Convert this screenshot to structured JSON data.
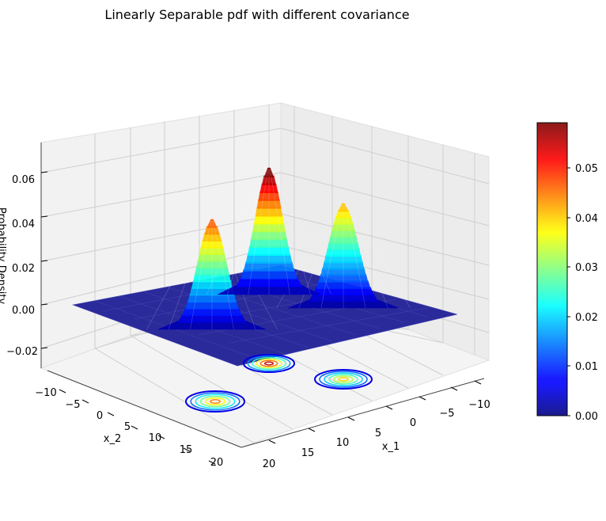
{
  "chart_data": {
    "type": "surface3d",
    "title": "Linearly Separable pdf with different covariance",
    "xlabel": "x_1",
    "ylabel": "x_2",
    "zlabel": "Probability Density",
    "x_ticks": [
      "−10",
      "−5",
      "0",
      "5",
      "10",
      "15",
      "20"
    ],
    "y_ticks": [
      "−10",
      "−5",
      "0",
      "5",
      "10",
      "15",
      "20"
    ],
    "z_ticks": [
      "0.06",
      "0.04",
      "0.02",
      "0.00",
      "−0.02"
    ],
    "colorbar_ticks": [
      "0.05",
      "0.04",
      "0.03",
      "0.02",
      "0.01",
      "0.00"
    ],
    "colormap": "jet",
    "surface_color_range": [
      0,
      0.059
    ],
    "peaks": [
      {
        "x_1": 10,
        "x_2": 0,
        "density": 0.059
      },
      {
        "x_1": 0,
        "x_2": 15,
        "density": 0.046
      },
      {
        "x_1": -5,
        "x_2": 0,
        "density": 0.04
      }
    ],
    "contour_projection": "z=-0.03 plane",
    "grid": true
  }
}
